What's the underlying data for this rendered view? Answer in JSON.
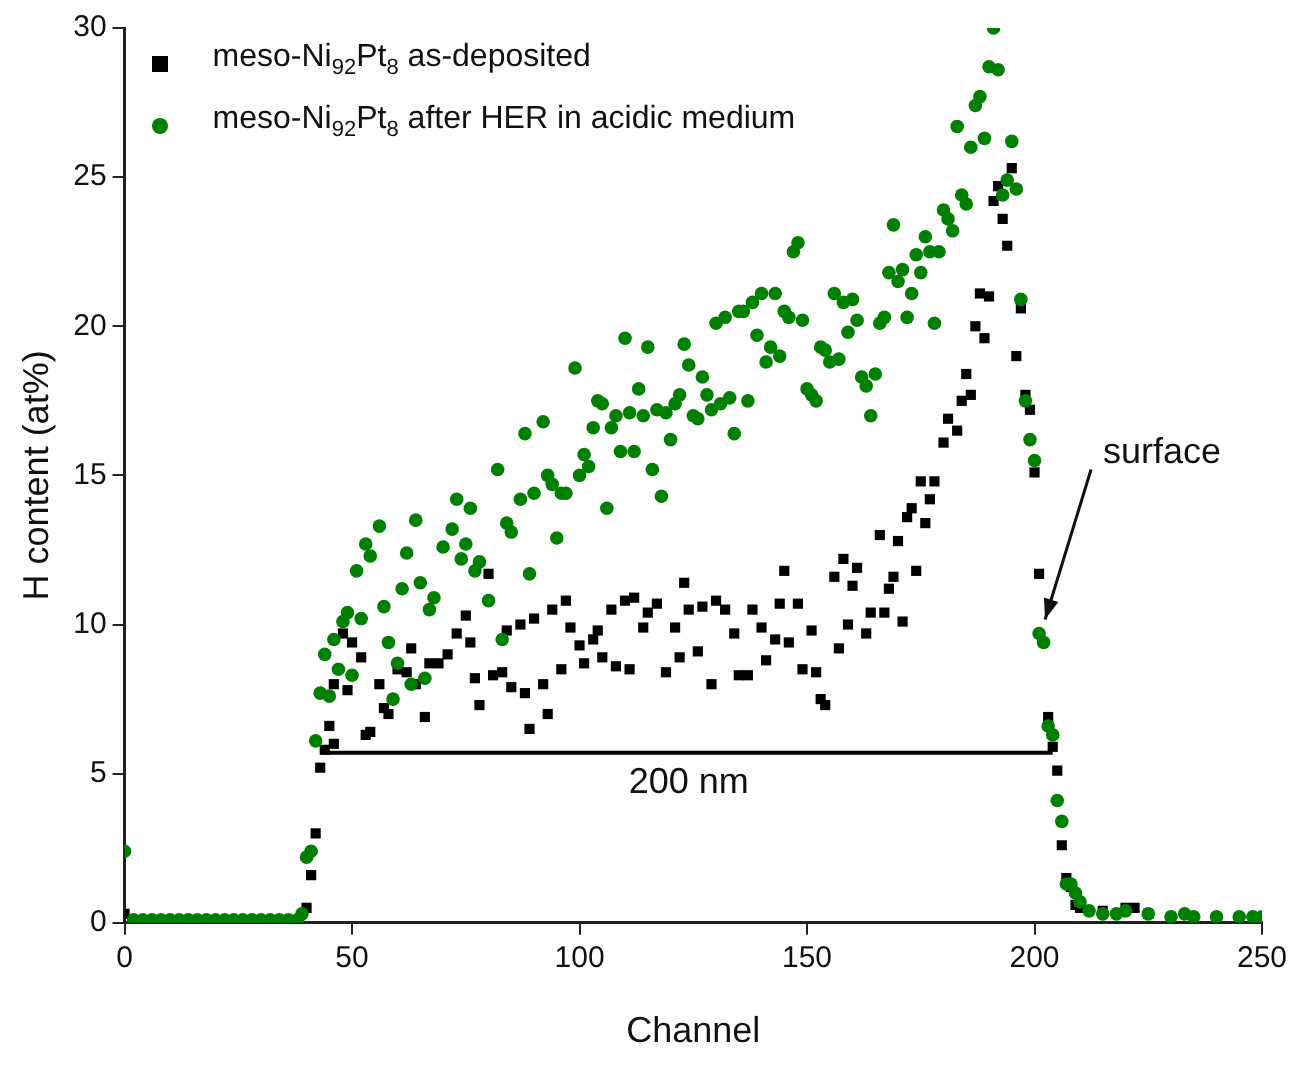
{
  "chart_data": {
    "type": "scatter",
    "xlabel": "Channel",
    "ylabel": "H content (at%)",
    "xlim": [
      0,
      250
    ],
    "xticks": [
      0,
      50,
      100,
      150,
      200,
      250
    ],
    "ylim": [
      0,
      30
    ],
    "yticks": [
      0,
      5,
      10,
      15,
      20,
      25,
      30
    ],
    "grid": false,
    "legend": "top left",
    "annotations": [
      {
        "text": "200 nm",
        "x": 124,
        "y": 5.7
      },
      {
        "text": "surface",
        "x": 201,
        "y": 9.7
      }
    ],
    "series": [
      {
        "name": "meso-Ni$_{92}$Pt$_{8}$ as-deposited",
        "color": "#000000",
        "marker": "square",
        "x": [
          0,
          40,
          41,
          42,
          43,
          44,
          45,
          46,
          46,
          48,
          49,
          50,
          52,
          53,
          54,
          56,
          57,
          58,
          60,
          62,
          63,
          64,
          66,
          67,
          69,
          71,
          73,
          75,
          76,
          77,
          78,
          80,
          81,
          83,
          84,
          85,
          87,
          88,
          89,
          90,
          92,
          93,
          94,
          96,
          97,
          98,
          100,
          101,
          103,
          104,
          105,
          107,
          108,
          110,
          111,
          112,
          114,
          115,
          117,
          119,
          121,
          122,
          123,
          124,
          126,
          127,
          129,
          130,
          132,
          134,
          135,
          137,
          138,
          140,
          141,
          143,
          144,
          145,
          146,
          148,
          149,
          151,
          152,
          153,
          154,
          156,
          157,
          158,
          159,
          160,
          161,
          163,
          164,
          166,
          167,
          168,
          169,
          170,
          171,
          172,
          173,
          174,
          175,
          176,
          177,
          178,
          180,
          181,
          183,
          184,
          185,
          186,
          187,
          188,
          189,
          190,
          191,
          192,
          193,
          194,
          195,
          196,
          197,
          198,
          199,
          200,
          201,
          203,
          204,
          205,
          206,
          207,
          208,
          209,
          210,
          215,
          220,
          222,
          225,
          230,
          240,
          245
        ],
        "values": [
          0.3,
          0.5,
          1.6,
          3.0,
          5.2,
          5.8,
          6.6,
          6.0,
          8.0,
          9.7,
          7.8,
          9.4,
          8.9,
          6.3,
          6.4,
          8.0,
          7.2,
          7.0,
          8.5,
          8.4,
          9.2,
          8.0,
          6.9,
          8.7,
          8.7,
          9.0,
          9.7,
          10.3,
          9.4,
          8.2,
          7.3,
          11.7,
          8.3,
          8.4,
          9.8,
          7.9,
          10.0,
          7.7,
          6.5,
          10.2,
          8.0,
          7.0,
          10.5,
          8.5,
          10.8,
          9.9,
          9.3,
          8.7,
          9.5,
          9.8,
          8.9,
          10.5,
          8.6,
          10.8,
          8.5,
          10.9,
          9.9,
          10.4,
          10.7,
          8.4,
          9.9,
          8.9,
          11.4,
          10.5,
          9.1,
          10.6,
          8.0,
          10.8,
          10.5,
          9.7,
          8.3,
          8.3,
          10.5,
          9.9,
          8.8,
          9.5,
          10.7,
          11.8,
          9.4,
          10.7,
          8.5,
          9.8,
          8.4,
          7.5,
          7.3,
          11.6,
          9.2,
          12.2,
          10.0,
          11.3,
          11.9,
          9.7,
          10.4,
          13.0,
          10.4,
          11.2,
          11.6,
          12.8,
          10.1,
          13.6,
          13.9,
          11.8,
          14.8,
          13.4,
          14.2,
          14.8,
          16.1,
          16.9,
          16.5,
          17.5,
          18.4,
          17.7,
          20.0,
          21.1,
          19.6,
          21.0,
          24.2,
          24.7,
          23.6,
          22.7,
          25.3,
          19.0,
          20.6,
          17.7,
          17.2,
          15.1,
          11.7,
          6.9,
          5.9,
          5.1,
          2.6,
          1.5,
          1.2,
          0.6,
          0.5,
          0.4,
          0.5,
          0.5,
          0.3,
          0.2,
          0.1,
          0.1
        ]
      },
      {
        "name": "meso-Ni$_{92}$Pt$_{8}$ after HER in acidic medium",
        "color": "#008000",
        "marker": "circle",
        "x": [
          0,
          2,
          4,
          6,
          8,
          10,
          12,
          14,
          16,
          18,
          20,
          22,
          24,
          26,
          28,
          30,
          32,
          34,
          36,
          38,
          39,
          40,
          41,
          42,
          43,
          44,
          45,
          46,
          47,
          48,
          49,
          50,
          51,
          52,
          53,
          54,
          56,
          57,
          58,
          59,
          60,
          61,
          62,
          63,
          64,
          65,
          66,
          67,
          68,
          70,
          72,
          73,
          74,
          75,
          76,
          77,
          78,
          80,
          82,
          83,
          84,
          85,
          87,
          88,
          89,
          90,
          92,
          93,
          94,
          95,
          96,
          97,
          99,
          100,
          101,
          102,
          103,
          104,
          105,
          106,
          107,
          108,
          109,
          110,
          111,
          112,
          113,
          114,
          115,
          116,
          117,
          118,
          119,
          120,
          121,
          122,
          123,
          124,
          125,
          126,
          127,
          128,
          129,
          130,
          131,
          132,
          133,
          134,
          135,
          136,
          137,
          138,
          139,
          140,
          141,
          142,
          143,
          144,
          145,
          146,
          147,
          148,
          149,
          150,
          151,
          152,
          153,
          154,
          155,
          156,
          157,
          158,
          159,
          160,
          161,
          162,
          163,
          164,
          165,
          166,
          167,
          168,
          169,
          170,
          171,
          172,
          173,
          174,
          175,
          176,
          177,
          178,
          179,
          180,
          181,
          182,
          183,
          184,
          185,
          186,
          187,
          188,
          189,
          190,
          191,
          192,
          193,
          194,
          195,
          196,
          197,
          198,
          199,
          200,
          201,
          202,
          203,
          204,
          205,
          206,
          207,
          208,
          209,
          210,
          212,
          215,
          218,
          220,
          225,
          230,
          233,
          235,
          240,
          245,
          248,
          250
        ],
        "values": [
          2.4,
          0.1,
          0.1,
          0.1,
          0.1,
          0.1,
          0.1,
          0.1,
          0.1,
          0.1,
          0.1,
          0.1,
          0.1,
          0.1,
          0.1,
          0.1,
          0.1,
          0.1,
          0.1,
          0.1,
          0.3,
          2.2,
          2.4,
          6.1,
          7.7,
          9.0,
          7.6,
          9.5,
          8.5,
          10.1,
          10.4,
          8.3,
          11.8,
          10.2,
          12.7,
          12.3,
          13.3,
          10.6,
          9.4,
          7.5,
          8.7,
          11.2,
          12.4,
          8.0,
          13.5,
          11.4,
          8.2,
          10.5,
          10.9,
          12.6,
          13.2,
          14.2,
          12.2,
          12.7,
          13.9,
          11.8,
          12.1,
          10.8,
          15.2,
          9.5,
          13.4,
          13.1,
          14.2,
          16.4,
          11.7,
          14.4,
          16.8,
          15.0,
          14.7,
          12.9,
          14.4,
          14.4,
          18.6,
          15.0,
          15.7,
          15.3,
          16.6,
          17.5,
          17.4,
          13.9,
          16.6,
          17.0,
          15.8,
          19.6,
          17.1,
          15.8,
          17.9,
          17.0,
          19.3,
          15.2,
          17.2,
          14.3,
          17.1,
          16.2,
          17.4,
          17.7,
          19.4,
          18.7,
          17.0,
          16.9,
          18.3,
          17.7,
          17.2,
          20.1,
          17.4,
          20.3,
          17.6,
          16.4,
          20.5,
          20.5,
          17.5,
          20.8,
          19.7,
          21.1,
          18.8,
          19.3,
          21.1,
          19.0,
          20.5,
          20.3,
          22.5,
          22.8,
          20.2,
          17.9,
          17.7,
          17.5,
          19.3,
          19.2,
          18.8,
          21.1,
          18.9,
          20.8,
          19.8,
          20.9,
          20.2,
          18.3,
          18.0,
          17.0,
          18.4,
          20.1,
          20.3,
          21.8,
          23.4,
          21.5,
          21.9,
          20.3,
          21.1,
          22.4,
          21.8,
          23.0,
          22.5,
          20.1,
          22.5,
          23.9,
          23.6,
          23.2,
          26.7,
          24.4,
          24.1,
          26.0,
          27.4,
          27.7,
          26.3,
          28.7,
          30.0,
          28.6,
          24.4,
          24.9,
          26.2,
          24.6,
          20.9,
          17.5,
          16.2,
          15.5,
          9.7,
          9.4,
          6.6,
          6.3,
          4.1,
          3.4,
          1.3,
          1.3,
          1.0,
          0.7,
          0.4,
          0.3,
          0.3,
          0.4,
          0.3,
          0.2,
          0.3,
          0.2,
          0.2,
          0.2,
          0.2,
          0.2
        ]
      },
      {
        "type": "line",
        "color": "#000000",
        "marker": "none",
        "line_style": "solid",
        "x": [
          44,
          204
        ],
        "values": [
          5.7,
          5.7
        ]
      }
    ]
  }
}
